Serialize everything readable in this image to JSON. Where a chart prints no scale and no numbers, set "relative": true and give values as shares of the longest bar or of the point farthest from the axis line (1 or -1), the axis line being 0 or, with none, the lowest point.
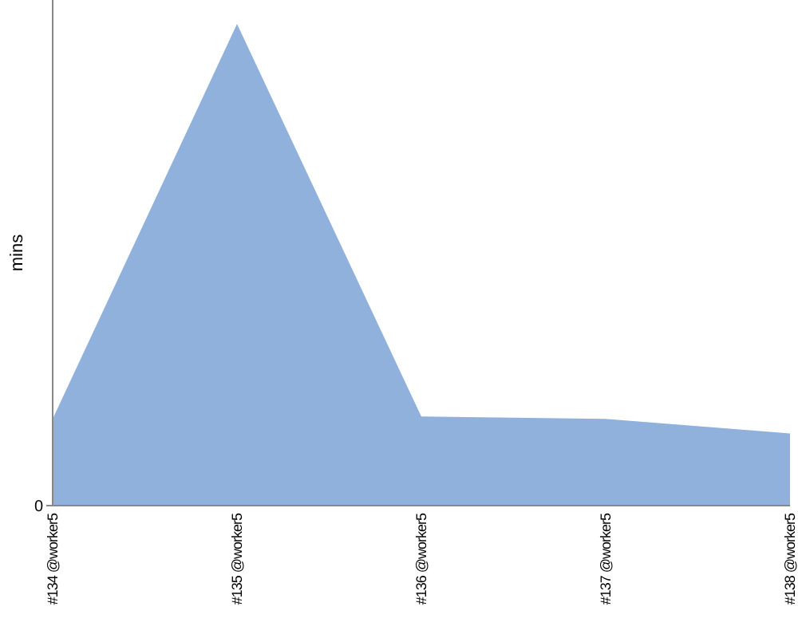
{
  "chart_data": {
    "type": "area",
    "ylabel": "mins",
    "relative": true,
    "annotations": [
      "0"
    ],
    "categories": [
      "#134 @worker5",
      "#135 @worker5",
      "#136 @worker5",
      "#137 @worker5",
      "#138 @worker5"
    ],
    "series": [
      {
        "color": "#8fb1db",
        "values": [
          0.18,
          1,
          0.185,
          0.18,
          0.15
        ]
      }
    ]
  }
}
